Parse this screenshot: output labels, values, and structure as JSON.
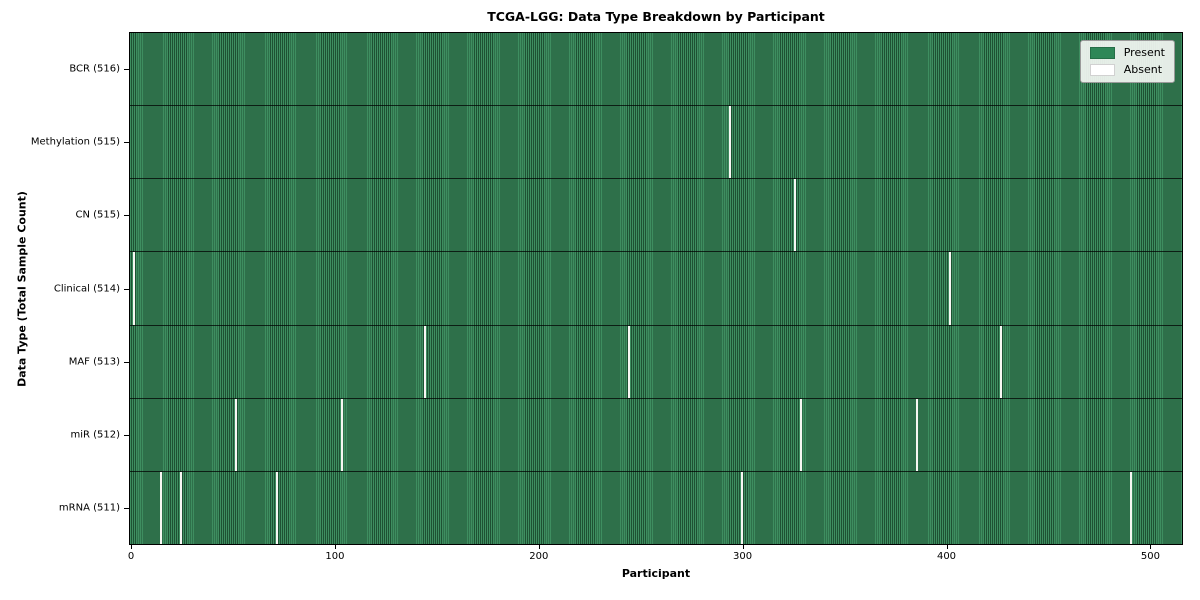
{
  "chart_data": {
    "type": "heatmap",
    "title": "TCGA-LGG: Data Type Breakdown by Participant",
    "xlabel": "Participant",
    "ylabel": "Data Type (Total Sample Count)",
    "x_ticks": [
      0,
      100,
      200,
      300,
      400,
      500
    ],
    "x_range": [
      -0.5,
      516.5
    ],
    "n_participants": 516,
    "grid": false,
    "legend": {
      "position": "upper-right",
      "entries": [
        {
          "label": "Present",
          "color": "#2e8757"
        },
        {
          "label": "Absent",
          "color": "#ffffff"
        }
      ]
    },
    "rows": [
      {
        "label": "BCR (516)",
        "data_type": "BCR",
        "total_samples": 516,
        "absent_participants": []
      },
      {
        "label": "Methylation (515)",
        "data_type": "Methylation",
        "total_samples": 515,
        "absent_participants": [
          294
        ]
      },
      {
        "label": "CN (515)",
        "data_type": "CN",
        "total_samples": 515,
        "absent_participants": [
          326
        ]
      },
      {
        "label": "Clinical (514)",
        "data_type": "Clinical",
        "total_samples": 514,
        "absent_participants": [
          1,
          402
        ]
      },
      {
        "label": "MAF (513)",
        "data_type": "MAF",
        "total_samples": 513,
        "absent_participants": [
          144,
          244,
          427
        ]
      },
      {
        "label": "miR (512)",
        "data_type": "miR",
        "total_samples": 512,
        "absent_participants": [
          51,
          103,
          329,
          386
        ]
      },
      {
        "label": "mRNA (511)",
        "data_type": "mRNA",
        "total_samples": 511,
        "absent_participants": [
          14,
          24,
          71,
          300,
          491
        ]
      }
    ],
    "colors": {
      "present_stripe_light": "#3e8e60",
      "present_stripe_dark": "#1e5133",
      "absent": "#f7f7f3"
    }
  }
}
